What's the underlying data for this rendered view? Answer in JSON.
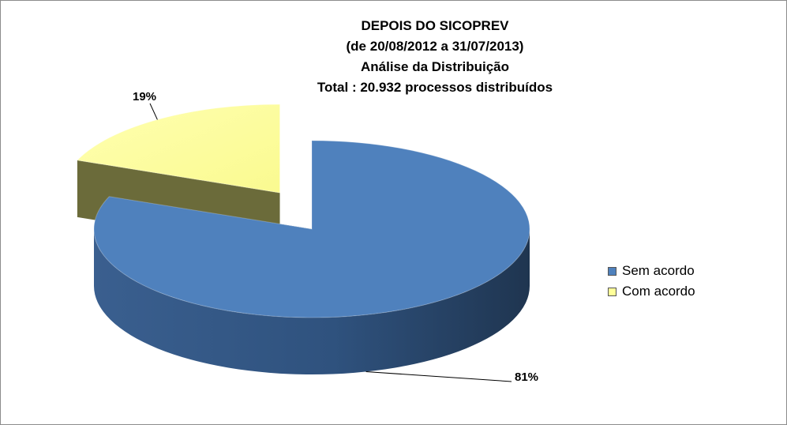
{
  "chart_data": {
    "type": "pie",
    "style": "3d-exploded",
    "title_lines": [
      "DEPOIS DO SICOPREV",
      "(de 20/08/2012 a 31/07/2013)",
      "Análise da Distribuição",
      "Total : 20.932 processos distribuídos"
    ],
    "slices": [
      {
        "name": "Sem acordo",
        "value": 81,
        "label": "81%",
        "color": "#4f81bd",
        "side_color": "#2c4a70"
      },
      {
        "name": "Com acordo",
        "value": 19,
        "label": "19%",
        "color": "#ffff99",
        "side_color": "#6b6b3a"
      }
    ],
    "legend_position": "right"
  }
}
